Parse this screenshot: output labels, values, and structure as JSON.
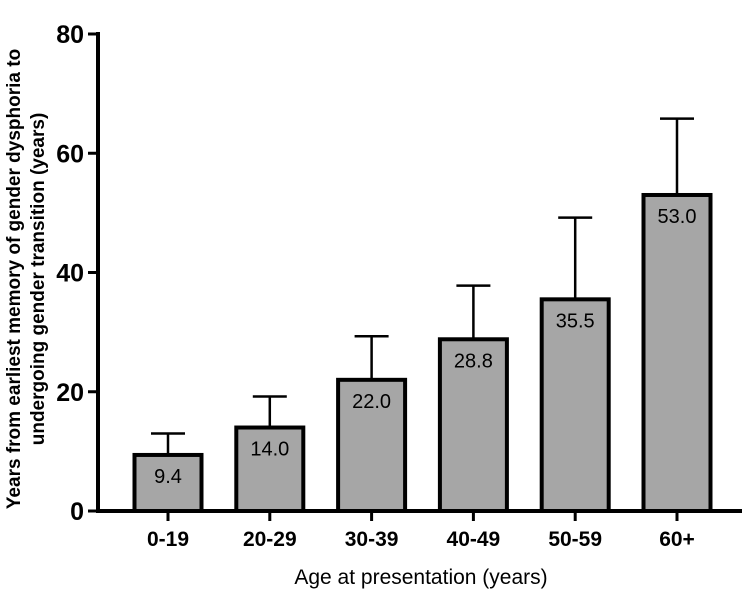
{
  "chart_data": {
    "type": "bar",
    "title": "",
    "xlabel": "Age at presentation (years)",
    "ylabel_lines": [
      "Years from earliest memory of gender dysphoria to",
      "undergoing gender transition (years)"
    ],
    "categories": [
      "0-19",
      "20-29",
      "30-39",
      "40-49",
      "50-59",
      "60+"
    ],
    "values": [
      9.4,
      14.0,
      22.0,
      28.8,
      35.5,
      53.0
    ],
    "data_labels": [
      "9.4",
      "14.0",
      "22.0",
      "28.8",
      "35.5",
      "53.0"
    ],
    "error_upper": [
      13.0,
      19.2,
      29.3,
      37.8,
      49.2,
      65.8
    ],
    "ylim": [
      0,
      80
    ],
    "yticks": [
      0,
      20,
      40,
      60,
      80
    ],
    "grid": false,
    "bar_color": "#a6a6a6",
    "edge_color": "#000000"
  }
}
